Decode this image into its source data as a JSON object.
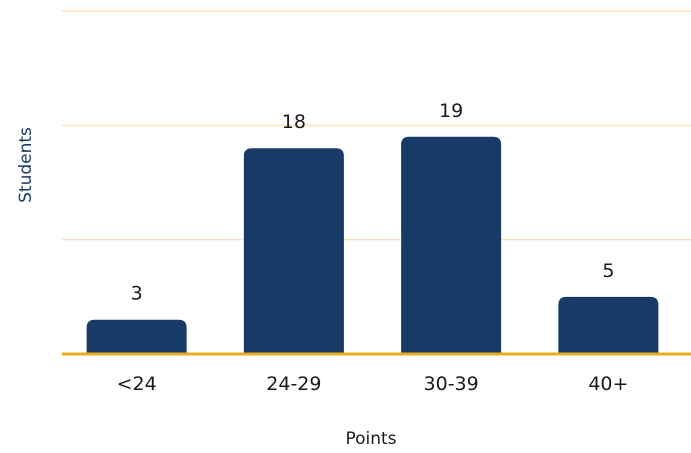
{
  "chart_data": {
    "type": "bar",
    "categories": [
      "<24",
      "24-29",
      "30-39",
      "40+"
    ],
    "values": [
      3,
      18,
      19,
      5
    ],
    "data_labels": [
      "3",
      "18",
      "19",
      "5"
    ],
    "title": "",
    "xlabel": "Points",
    "ylabel": "Students",
    "ylim": [
      0,
      30
    ],
    "grid": true,
    "bar_color": "#173a66",
    "grid_color": "#fbe3bf",
    "baseline_color": "#e9ad1c"
  }
}
